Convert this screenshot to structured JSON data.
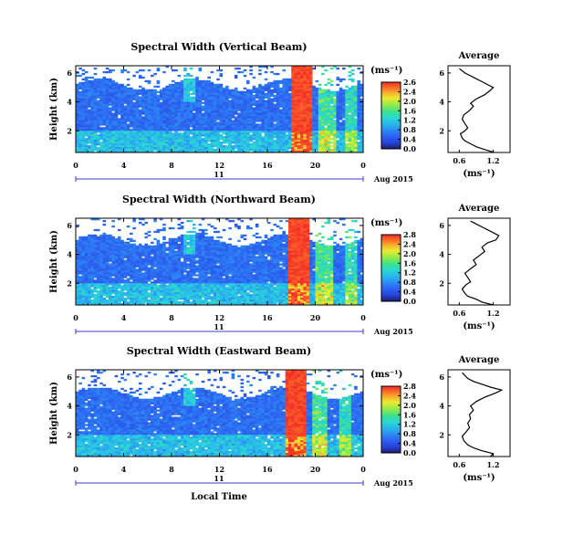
{
  "figure": {
    "bottom_xlabel": "Local Time",
    "panels": [
      {
        "title": "Spectral Width (Vertical Beam)",
        "ylabel": "Height (km)",
        "y_ticks": [
          "6",
          "4",
          "2"
        ],
        "x_ticks": [
          "0",
          "4",
          "8",
          "12",
          "16",
          "20",
          "0"
        ],
        "day_label": "11",
        "date_label": "Aug 2015",
        "colorbar_unit": "(ms⁻¹)",
        "colorbar_ticks": [
          "2.6",
          "2.4",
          "2.0",
          "1.6",
          "1.2",
          "0.8",
          "0.4",
          "0.0"
        ],
        "avg_title": "Average",
        "avg_y_ticks": [
          "6",
          "4",
          "2"
        ],
        "avg_x_ticks": [
          "0.6",
          "1.2"
        ],
        "avg_xlabel": "(ms⁻¹)"
      },
      {
        "title": "Spectral Width (Northward Beam)",
        "ylabel": "Height (km)",
        "y_ticks": [
          "6",
          "4",
          "2"
        ],
        "x_ticks": [
          "0",
          "4",
          "8",
          "12",
          "16",
          "20",
          "0"
        ],
        "day_label": "11",
        "date_label": "Aug 2015",
        "colorbar_unit": "(ms⁻¹)",
        "colorbar_ticks": [
          "2.8",
          "2.4",
          "2.0",
          "1.6",
          "1.2",
          "0.8",
          "0.4",
          "0.0"
        ],
        "avg_title": "Average",
        "avg_y_ticks": [
          "6",
          "4",
          "2"
        ],
        "avg_x_ticks": [
          "0.6",
          "1.2"
        ],
        "avg_xlabel": "(ms⁻¹)"
      },
      {
        "title": "Spectral Width (Eastward Beam)",
        "ylabel": "Height (km)",
        "y_ticks": [
          "6",
          "4",
          "2"
        ],
        "x_ticks": [
          "0",
          "4",
          "8",
          "12",
          "16",
          "20",
          "0"
        ],
        "day_label": "11",
        "date_label": "Aug 2015",
        "colorbar_unit": "(ms⁻¹)",
        "colorbar_ticks": [
          "2.8",
          "2.4",
          "2.0",
          "1.6",
          "1.2",
          "0.8",
          "0.4",
          "0.0"
        ],
        "avg_title": "Average",
        "avg_y_ticks": [
          "6",
          "4",
          "2"
        ],
        "avg_x_ticks": [
          "0.6",
          "1.2"
        ],
        "avg_xlabel": "(ms⁻¹)"
      }
    ]
  },
  "chart_data": [
    {
      "type": "heatmap",
      "title": "Spectral Width (Vertical Beam)",
      "xlabel": "Local Time",
      "ylabel": "Height (km)",
      "x_range_hours": [
        0,
        24
      ],
      "y_range_km": [
        0.5,
        6.5
      ],
      "colorbar": {
        "label": "(ms⁻¹)",
        "range": [
          0.0,
          2.8
        ],
        "colormap": "rainbow"
      },
      "features": [
        {
          "description": "high spectral width band",
          "x_hours": [
            18.0,
            19.8
          ],
          "value": 2.8
        },
        {
          "description": "no data (white) above",
          "height_km_above": 5.2
        }
      ],
      "background_value": 0.6
    },
    {
      "type": "line",
      "title": "Average",
      "xlabel": "(ms⁻¹)",
      "xlim": [
        0.4,
        1.5
      ],
      "ylim": [
        0.5,
        6.5
      ],
      "series": [
        {
          "x": [
            1.22,
            1.05,
            0.9,
            0.8,
            0.7,
            0.65,
            0.62,
            0.7,
            0.75,
            0.7,
            0.65,
            0.68,
            0.78,
            0.85,
            0.8,
            0.9,
            1.05,
            1.15,
            1.2,
            1.1,
            1.0,
            0.85,
            0.7,
            0.6
          ],
          "y": [
            0.5,
            0.7,
            0.9,
            1.1,
            1.3,
            1.5,
            1.8,
            2.0,
            2.2,
            2.5,
            2.8,
            3.1,
            3.4,
            3.7,
            3.9,
            4.2,
            4.5,
            4.8,
            5.0,
            5.2,
            5.4,
            5.7,
            6.0,
            6.3
          ]
        }
      ]
    },
    {
      "type": "heatmap",
      "title": "Spectral Width (Northward Beam)",
      "xlabel": "Local Time",
      "ylabel": "Height (km)",
      "x_range_hours": [
        0,
        24
      ],
      "y_range_km": [
        0.5,
        6.5
      ],
      "colorbar": {
        "label": "(ms⁻¹)",
        "range": [
          0.0,
          2.8
        ],
        "colormap": "rainbow"
      },
      "features": [
        {
          "description": "high spectral width band",
          "x_hours": [
            17.8,
            19.6
          ],
          "value": 2.8
        },
        {
          "description": "no data (white) above",
          "height_km_above": 5.0
        }
      ],
      "background_value": 0.6
    },
    {
      "type": "line",
      "title": "Average",
      "xlabel": "(ms⁻¹)",
      "xlim": [
        0.4,
        1.5
      ],
      "ylim": [
        0.5,
        6.5
      ],
      "series": [
        {
          "x": [
            1.2,
            1.0,
            0.9,
            0.75,
            0.7,
            0.65,
            0.72,
            0.8,
            0.75,
            0.7,
            0.8,
            0.9,
            0.85,
            0.95,
            1.05,
            1.0,
            1.1,
            1.25,
            1.3,
            1.2,
            1.1,
            1.0,
            0.9,
            0.8
          ],
          "y": [
            0.5,
            0.7,
            0.9,
            1.1,
            1.3,
            1.6,
            1.9,
            2.1,
            2.4,
            2.7,
            3.0,
            3.3,
            3.6,
            3.9,
            4.2,
            4.5,
            4.8,
            5.0,
            5.3,
            5.5,
            5.7,
            5.9,
            6.1,
            6.3
          ]
        }
      ]
    },
    {
      "type": "heatmap",
      "title": "Spectral Width (Eastward Beam)",
      "xlabel": "Local Time",
      "ylabel": "Height (km)",
      "x_range_hours": [
        0,
        24
      ],
      "y_range_km": [
        0.5,
        6.5
      ],
      "colorbar": {
        "label": "(ms⁻¹)",
        "range": [
          0.0,
          2.8
        ],
        "colormap": "rainbow"
      },
      "features": [
        {
          "description": "high spectral width band",
          "x_hours": [
            17.5,
            19.2
          ],
          "value": 2.8
        },
        {
          "description": "no data (white) above",
          "height_km_above": 4.9
        }
      ],
      "background_value": 0.6
    },
    {
      "type": "line",
      "title": "Average",
      "xlabel": "(ms⁻¹)",
      "xlim": [
        0.4,
        1.5
      ],
      "ylim": [
        0.5,
        6.5
      ],
      "series": [
        {
          "x": [
            1.15,
            1.2,
            1.0,
            0.85,
            0.75,
            0.68,
            0.65,
            0.72,
            0.78,
            0.75,
            0.8,
            0.78,
            0.85,
            0.8,
            0.9,
            1.05,
            1.25,
            1.35,
            1.15,
            1.0,
            0.85,
            0.75,
            0.7,
            0.65
          ],
          "y": [
            0.5,
            0.7,
            0.9,
            1.1,
            1.3,
            1.6,
            1.9,
            2.2,
            2.5,
            2.8,
            3.1,
            3.4,
            3.7,
            4.0,
            4.3,
            4.6,
            4.9,
            5.1,
            5.3,
            5.5,
            5.7,
            5.9,
            6.1,
            6.3
          ]
        }
      ]
    }
  ]
}
